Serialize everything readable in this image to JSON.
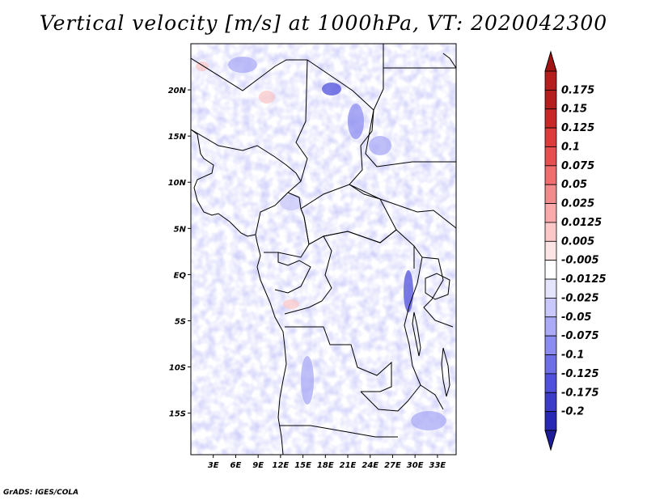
{
  "title": "Vertical velocity [m/s] at 1000hPa, VT: 2020042300",
  "credit": "GrADS: IGES/COLA",
  "map": {
    "projection": "lat-lon",
    "lon_range": [
      0,
      35.5
    ],
    "lat_range": [
      -19.5,
      25
    ],
    "lon_ticks": [
      {
        "value": 3,
        "label": "3E"
      },
      {
        "value": 6,
        "label": "6E"
      },
      {
        "value": 9,
        "label": "9E"
      },
      {
        "value": 12,
        "label": "12E"
      },
      {
        "value": 15,
        "label": "15E"
      },
      {
        "value": 18,
        "label": "18E"
      },
      {
        "value": 21,
        "label": "21E"
      },
      {
        "value": 24,
        "label": "24E"
      },
      {
        "value": 27,
        "label": "27E"
      },
      {
        "value": 30,
        "label": "30E"
      },
      {
        "value": 33,
        "label": "33E"
      }
    ],
    "lat_ticks": [
      {
        "value": 20,
        "label": "20N"
      },
      {
        "value": 15,
        "label": "15N"
      },
      {
        "value": 10,
        "label": "10N"
      },
      {
        "value": 5,
        "label": "5N"
      },
      {
        "value": 0,
        "label": "EQ"
      },
      {
        "value": -5,
        "label": "5S"
      },
      {
        "value": -10,
        "label": "10S"
      },
      {
        "value": -15,
        "label": "15S"
      }
    ],
    "features": "political boundaries and coastlines (black lines)",
    "field": "vertical velocity at 1000hPa, shaded"
  },
  "colorbar": {
    "orientation": "vertical",
    "placement": "right",
    "levels": [
      {
        "label": "0.175",
        "color": "#b41e1e"
      },
      {
        "label": "0.15",
        "color": "#c82828"
      },
      {
        "label": "0.125",
        "color": "#dc3c3c"
      },
      {
        "label": "0.1",
        "color": "#e65050"
      },
      {
        "label": "0.075",
        "color": "#f06e6e"
      },
      {
        "label": "0.05",
        "color": "#f08c8c"
      },
      {
        "label": "0.025",
        "color": "#faaaaa"
      },
      {
        "label": "0.0125",
        "color": "#fac8c8"
      },
      {
        "label": "0.005",
        "color": "#fce4e4"
      },
      {
        "label": "-0.005",
        "color": "#ffffff"
      },
      {
        "label": "-0.0125",
        "color": "#e4e4fc"
      },
      {
        "label": "-0.025",
        "color": "#c8c8fa"
      },
      {
        "label": "-0.05",
        "color": "#aaaaf6"
      },
      {
        "label": "-0.075",
        "color": "#8c8cf0"
      },
      {
        "label": "-0.1",
        "color": "#6e6ee6"
      },
      {
        "label": "-0.125",
        "color": "#5050dc"
      },
      {
        "label": "-0.175",
        "color": "#3c3cc8"
      },
      {
        "label": "-0.2",
        "color": "#2828b4"
      }
    ],
    "top_triangle_color": "#a01414",
    "bottom_triangle_color": "#1e1e9b",
    "unit": "m/s"
  }
}
